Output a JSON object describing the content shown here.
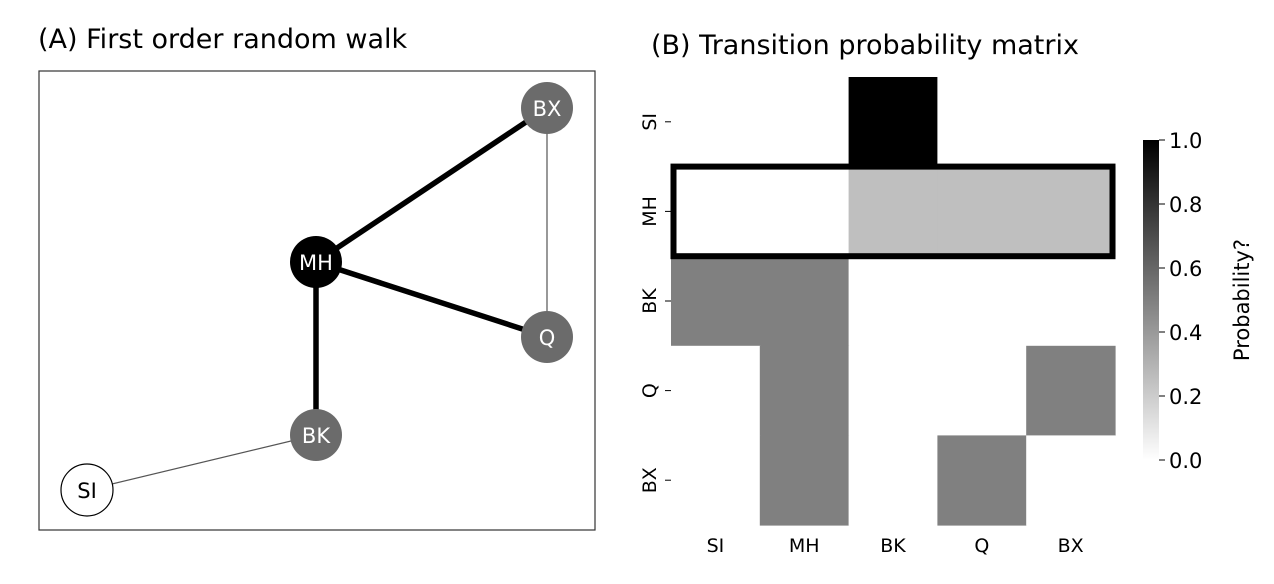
{
  "panel_a": {
    "title": "(A) First order random walk"
  },
  "panel_b": {
    "title": "(B) Transition probability matrix"
  },
  "chart_data": [
    {
      "type": "network",
      "title": "(A) First order random walk",
      "nodes": [
        {
          "id": "BX",
          "label": "BX",
          "fill": "#6b6b6b",
          "text_color": "#ffffff"
        },
        {
          "id": "MH",
          "label": "MH",
          "fill": "#000000",
          "text_color": "#ffffff"
        },
        {
          "id": "Q",
          "label": "Q",
          "fill": "#6b6b6b",
          "text_color": "#ffffff"
        },
        {
          "id": "BK",
          "label": "BK",
          "fill": "#6b6b6b",
          "text_color": "#ffffff"
        },
        {
          "id": "SI",
          "label": "SI",
          "fill": "#ffffff",
          "text_color": "#000000"
        }
      ],
      "edges": [
        {
          "source": "MH",
          "target": "BX",
          "weight": "thick"
        },
        {
          "source": "MH",
          "target": "Q",
          "weight": "thick"
        },
        {
          "source": "MH",
          "target": "BK",
          "weight": "thick"
        },
        {
          "source": "BX",
          "target": "Q",
          "weight": "thin"
        },
        {
          "source": "BK",
          "target": "SI",
          "weight": "thin"
        }
      ]
    },
    {
      "type": "heatmap",
      "title": "(B) Transition probability matrix",
      "rows": [
        "SI",
        "MH",
        "BK",
        "Q",
        "BX"
      ],
      "cols": [
        "SI",
        "MH",
        "BK",
        "Q",
        "BX"
      ],
      "values": [
        [
          0,
          0,
          1.0,
          0,
          0
        ],
        [
          0,
          0,
          0.25,
          0.25,
          0.25
        ],
        [
          0.5,
          0.5,
          0,
          0,
          0
        ],
        [
          0,
          0.5,
          0,
          0,
          0.5
        ],
        [
          0,
          0.5,
          0,
          0.5,
          0
        ]
      ],
      "highlight_row": "MH",
      "colorbar": {
        "label": "Probability?",
        "range": [
          0,
          1
        ],
        "ticks": [
          "0.0",
          "0.2",
          "0.4",
          "0.6",
          "0.8",
          "1.0"
        ],
        "colormap": "Greys"
      }
    }
  ]
}
